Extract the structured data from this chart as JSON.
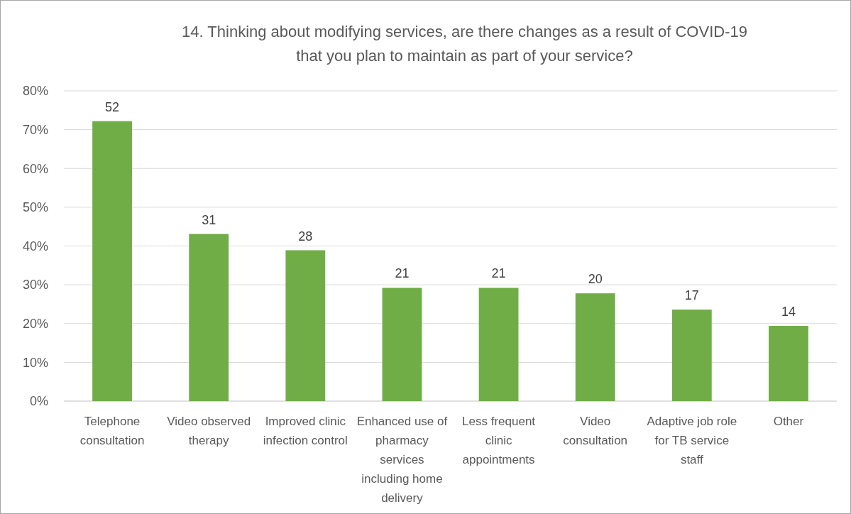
{
  "chart_data": {
    "type": "bar",
    "title": "14. Thinking about modifying services, are there changes as a result of COVID-19 that you plan to maintain as part of your service?",
    "categories": [
      "Telephone consultation",
      "Video observed therapy",
      "Improved clinic infection control",
      "Enhanced use of pharmacy services including home delivery",
      "Less frequent clinic appointments",
      "Video consultation",
      "Adaptive job role for TB service staff",
      "Other"
    ],
    "values": [
      72.2,
      43.1,
      38.9,
      29.2,
      29.2,
      27.8,
      23.6,
      19.4
    ],
    "annotations": [
      {
        "text": "52",
        "x": "Telephone consultation",
        "y": 72.2
      },
      {
        "text": "31",
        "x": "Video observed therapy",
        "y": 43.1
      },
      {
        "text": "28",
        "x": "Improved clinic infection control",
        "y": 38.9
      },
      {
        "text": "21",
        "x": "Enhanced use of pharmacy services including home delivery",
        "y": 29.2
      },
      {
        "text": "21",
        "x": "Less frequent clinic appointments",
        "y": 29.2
      },
      {
        "text": "20",
        "x": "Video consultation",
        "y": 27.8
      },
      {
        "text": "17",
        "x": "Adaptive job role for TB service staff",
        "y": 23.6
      },
      {
        "text": "14",
        "x": "Other",
        "y": 19.4
      }
    ],
    "color": "#70ad47",
    "ylim": [
      0,
      80
    ],
    "yticks": [
      {
        "value": 0,
        "label": "0%"
      },
      {
        "value": 10,
        "label": "10%"
      },
      {
        "value": 20,
        "label": "20%"
      },
      {
        "value": 30,
        "label": "30%"
      },
      {
        "value": 40,
        "label": "40%"
      },
      {
        "value": 50,
        "label": "50%"
      },
      {
        "value": 60,
        "label": "60%"
      },
      {
        "value": 70,
        "label": "70%"
      },
      {
        "value": 80,
        "label": "80%"
      }
    ],
    "grid": "y"
  }
}
